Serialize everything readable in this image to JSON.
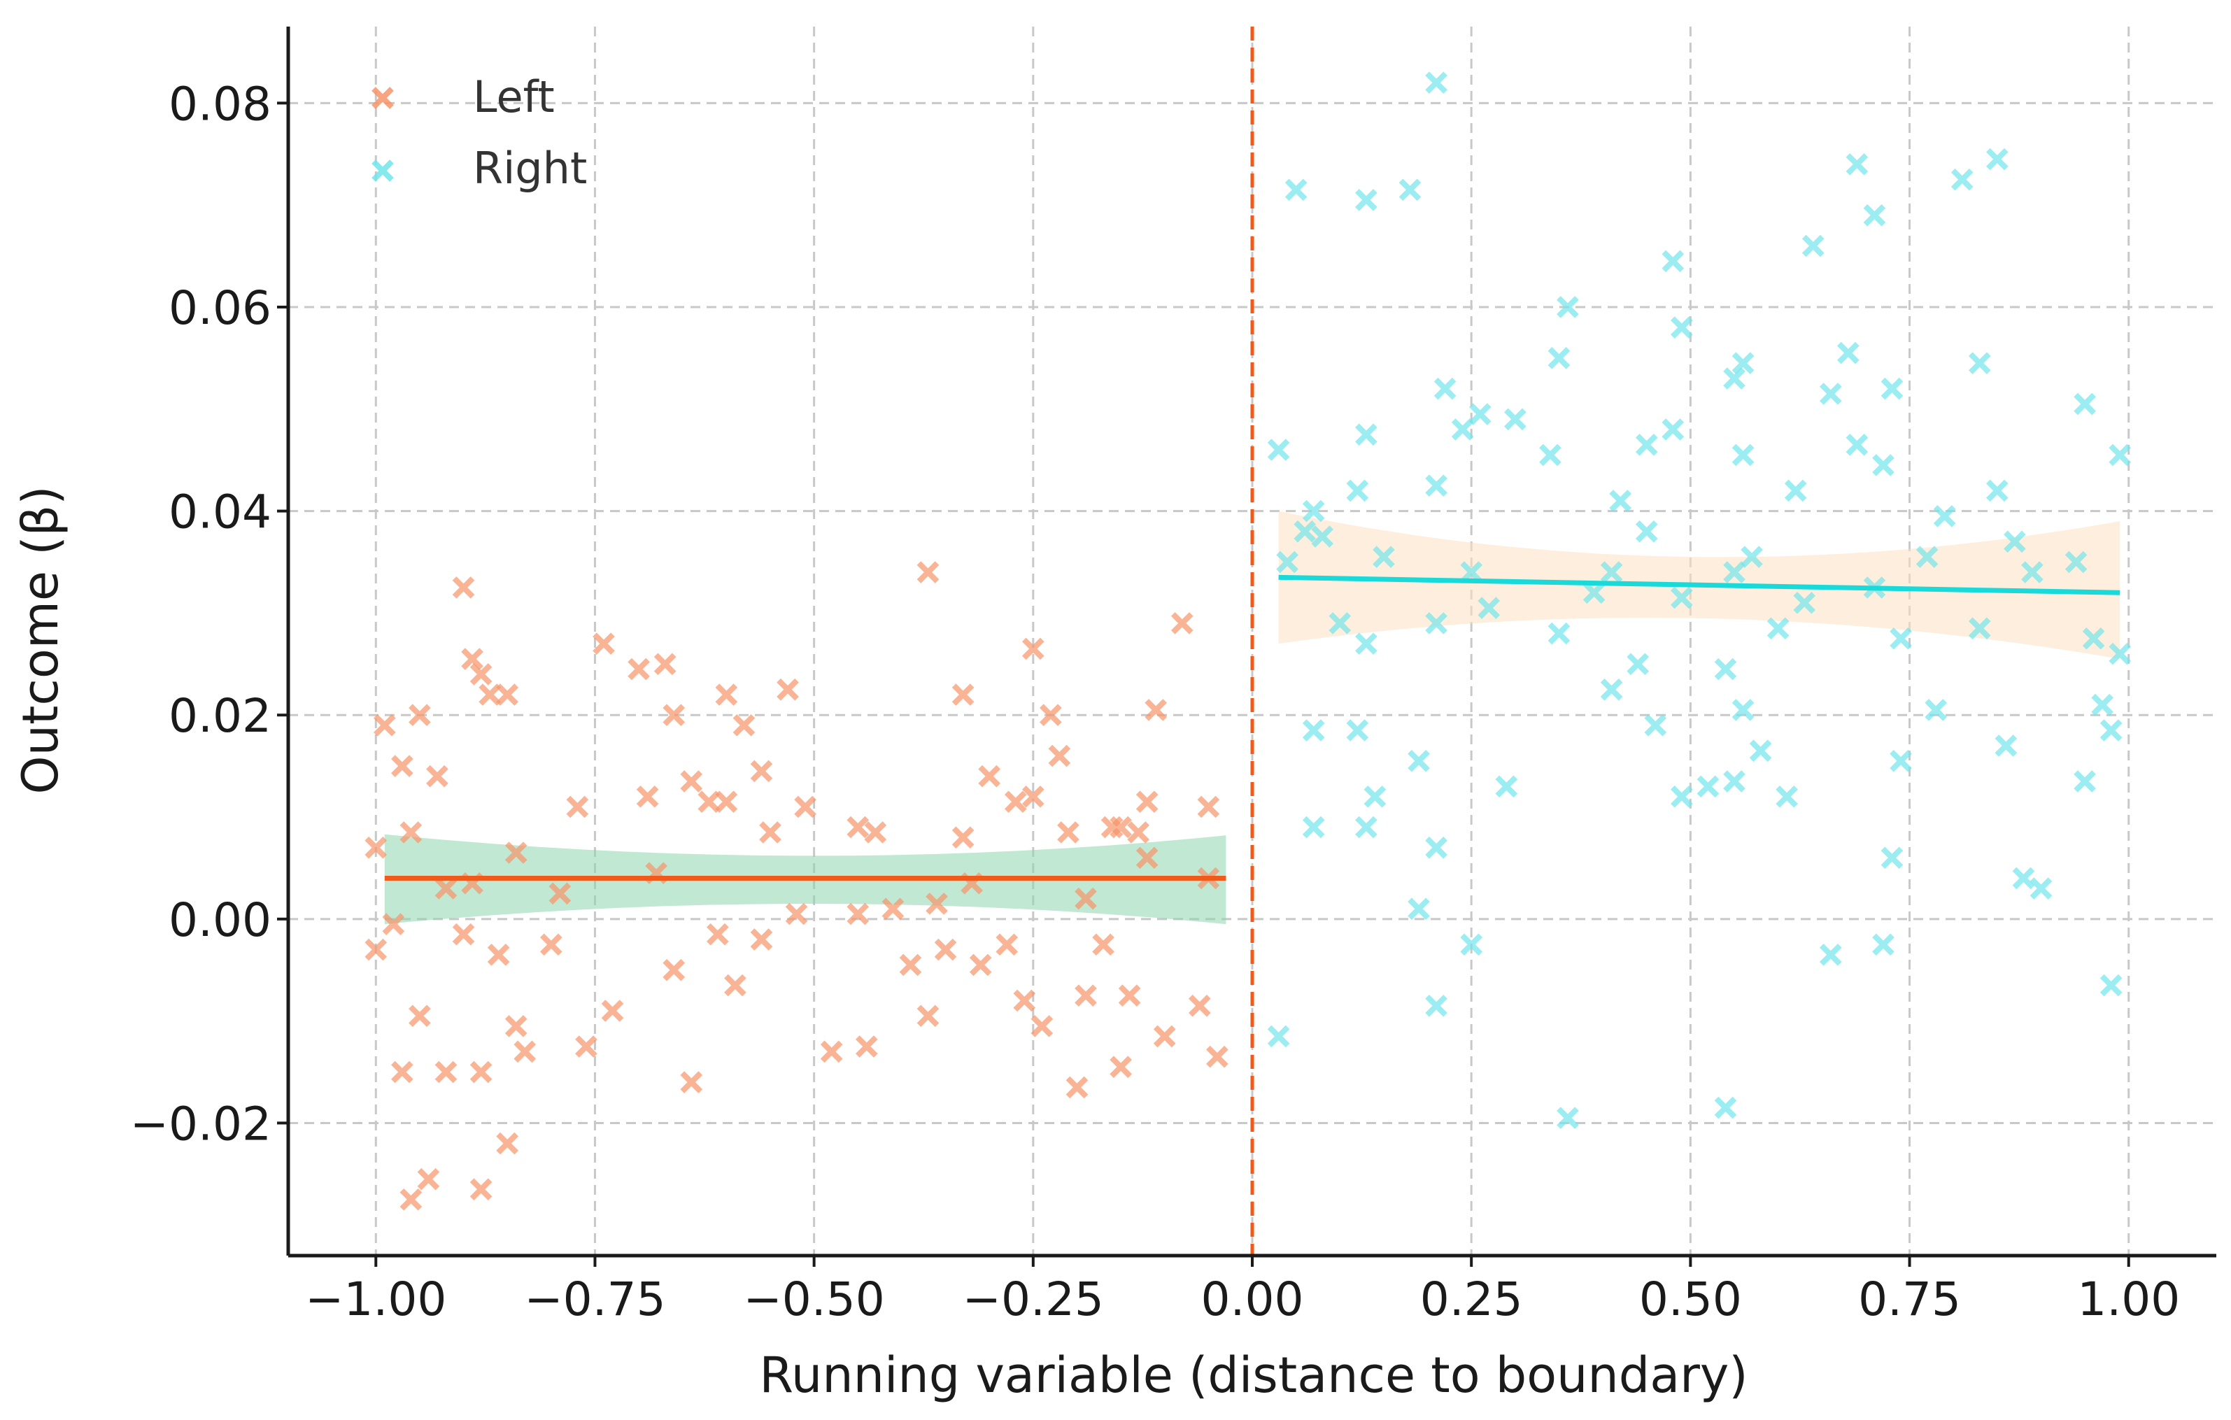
{
  "chart_data": {
    "type": "scatter",
    "title": "",
    "xlabel": "Running variable (distance to boundary)",
    "ylabel": "Outcome (β)",
    "xlim": [
      -1.1,
      1.1
    ],
    "ylim": [
      -0.033,
      0.0875
    ],
    "grid": true,
    "grid_style": "dashed",
    "legend_position": "top-left",
    "x_ticks": [
      -1.0,
      -0.75,
      -0.5,
      -0.25,
      0.0,
      0.25,
      0.5,
      0.75,
      1.0
    ],
    "x_tick_labels": [
      "−1.00",
      "−0.75",
      "−0.50",
      "−0.25",
      "0.00",
      "0.25",
      "0.50",
      "0.75",
      "1.00"
    ],
    "y_ticks": [
      -0.02,
      0.0,
      0.02,
      0.04,
      0.06,
      0.08
    ],
    "y_tick_labels": [
      "−0.02",
      "0.00",
      "0.02",
      "0.04",
      "0.06",
      "0.08"
    ],
    "cutoff": {
      "x": 0.0,
      "color": "#f05a1a",
      "style": "dashed"
    },
    "series": [
      {
        "name": "Left",
        "marker": "x",
        "color": "#f7956a",
        "fit_color": "#f05a1a",
        "band_color": "#8ed6ad",
        "fit": {
          "x": [
            -0.99,
            -0.03
          ],
          "y": [
            0.004,
            0.004
          ]
        },
        "band": {
          "x": [
            -0.99,
            -0.5,
            -0.03
          ],
          "lower": [
            -0.0005,
            0.0015,
            -0.0005
          ],
          "upper": [
            0.0083,
            0.0062,
            0.0082
          ]
        },
        "points": [
          [
            -1.0,
            0.007
          ],
          [
            -0.99,
            0.019
          ],
          [
            -0.97,
            0.015
          ],
          [
            -0.95,
            0.02
          ],
          [
            -0.93,
            0.014
          ],
          [
            -0.9,
            0.0325
          ],
          [
            -0.89,
            0.0255
          ],
          [
            -0.88,
            0.024
          ],
          [
            -0.87,
            0.022
          ],
          [
            -0.85,
            0.022
          ],
          [
            -0.96,
            0.0085
          ],
          [
            -0.92,
            0.003
          ],
          [
            -0.89,
            0.0035
          ],
          [
            -0.84,
            0.0065
          ],
          [
            -0.79,
            0.0025
          ],
          [
            -0.77,
            0.011
          ],
          [
            -0.74,
            0.027
          ],
          [
            -0.7,
            0.0245
          ],
          [
            -0.69,
            0.012
          ],
          [
            -0.67,
            0.025
          ],
          [
            -0.66,
            0.02
          ],
          [
            -0.62,
            0.0115
          ],
          [
            -0.6,
            0.022
          ],
          [
            -0.58,
            0.019
          ],
          [
            -0.56,
            0.0145
          ],
          [
            -0.53,
            0.0225
          ],
          [
            -0.51,
            0.011
          ],
          [
            -0.45,
            0.009
          ],
          [
            -0.43,
            0.0085
          ],
          [
            -0.37,
            0.034
          ],
          [
            -0.33,
            0.022
          ],
          [
            -0.3,
            0.014
          ],
          [
            -0.25,
            0.0265
          ],
          [
            -0.23,
            0.02
          ],
          [
            -0.22,
            0.016
          ],
          [
            -0.08,
            0.029
          ],
          [
            -0.11,
            0.0205
          ],
          [
            -0.12,
            0.0115
          ],
          [
            -0.15,
            0.009
          ],
          [
            -0.05,
            0.011
          ],
          [
            -1.0,
            -0.003
          ],
          [
            -0.98,
            -0.0005
          ],
          [
            -0.97,
            -0.015
          ],
          [
            -0.95,
            -0.0095
          ],
          [
            -0.92,
            -0.015
          ],
          [
            -0.9,
            -0.0015
          ],
          [
            -0.88,
            -0.015
          ],
          [
            -0.86,
            -0.0035
          ],
          [
            -0.84,
            -0.0105
          ],
          [
            -0.83,
            -0.013
          ],
          [
            -0.8,
            -0.0025
          ],
          [
            -0.76,
            -0.0125
          ],
          [
            -0.73,
            -0.009
          ],
          [
            -0.66,
            -0.005
          ],
          [
            -0.64,
            -0.016
          ],
          [
            -0.61,
            -0.0015
          ],
          [
            -0.59,
            -0.0065
          ],
          [
            -0.56,
            -0.002
          ],
          [
            -0.52,
            0.0005
          ],
          [
            -0.48,
            -0.013
          ],
          [
            -0.45,
            0.0005
          ],
          [
            -0.44,
            -0.0125
          ],
          [
            -0.39,
            -0.0045
          ],
          [
            -0.37,
            -0.0095
          ],
          [
            -0.35,
            -0.003
          ],
          [
            -0.31,
            -0.0045
          ],
          [
            -0.28,
            -0.0025
          ],
          [
            -0.26,
            -0.008
          ],
          [
            -0.24,
            -0.0105
          ],
          [
            -0.2,
            -0.0165
          ],
          [
            -0.19,
            -0.0075
          ],
          [
            -0.17,
            -0.0025
          ],
          [
            -0.15,
            -0.0145
          ],
          [
            -0.14,
            -0.0075
          ],
          [
            -0.1,
            -0.0115
          ],
          [
            -0.06,
            -0.0085
          ],
          [
            -0.04,
            -0.0135
          ],
          [
            -0.96,
            -0.0275
          ],
          [
            -0.94,
            -0.0255
          ],
          [
            -0.88,
            -0.0265
          ],
          [
            -0.85,
            -0.022
          ],
          [
            -0.68,
            0.0045
          ],
          [
            -0.64,
            0.0135
          ],
          [
            -0.6,
            0.0115
          ],
          [
            -0.55,
            0.0085
          ],
          [
            -0.41,
            0.001
          ],
          [
            -0.36,
            0.0015
          ],
          [
            -0.33,
            0.008
          ],
          [
            -0.32,
            0.0035
          ],
          [
            -0.27,
            0.0115
          ],
          [
            -0.25,
            0.012
          ],
          [
            -0.21,
            0.0085
          ],
          [
            -0.19,
            0.002
          ],
          [
            -0.16,
            0.009
          ],
          [
            -0.13,
            0.0085
          ],
          [
            -0.12,
            0.006
          ],
          [
            -0.05,
            0.004
          ]
        ]
      },
      {
        "name": "Right",
        "marker": "x",
        "color": "#72e6ec",
        "fit_color": "#1ad9d9",
        "band_color": "#fde0c2",
        "fit": {
          "x": [
            0.03,
            0.99
          ],
          "y": [
            0.0335,
            0.032
          ]
        },
        "band": {
          "x": [
            0.03,
            0.5,
            0.99
          ],
          "lower": [
            0.027,
            0.0295,
            0.0255
          ],
          "upper": [
            0.04,
            0.0355,
            0.039
          ]
        },
        "points": [
          [
            0.05,
            0.0715
          ],
          [
            0.13,
            0.0705
          ],
          [
            0.18,
            0.0715
          ],
          [
            0.21,
            0.082
          ],
          [
            0.03,
            0.046
          ],
          [
            0.07,
            0.04
          ],
          [
            0.12,
            0.042
          ],
          [
            0.13,
            0.0475
          ],
          [
            0.21,
            0.0425
          ],
          [
            0.22,
            0.052
          ],
          [
            0.24,
            0.048
          ],
          [
            0.26,
            0.0495
          ],
          [
            0.3,
            0.049
          ],
          [
            0.34,
            0.0455
          ],
          [
            0.35,
            0.055
          ],
          [
            0.36,
            0.06
          ],
          [
            0.42,
            0.041
          ],
          [
            0.45,
            0.0465
          ],
          [
            0.48,
            0.0645
          ],
          [
            0.49,
            0.058
          ],
          [
            0.48,
            0.048
          ],
          [
            0.55,
            0.053
          ],
          [
            0.56,
            0.0545
          ],
          [
            0.56,
            0.0455
          ],
          [
            0.62,
            0.042
          ],
          [
            0.64,
            0.066
          ],
          [
            0.66,
            0.0515
          ],
          [
            0.68,
            0.0555
          ],
          [
            0.69,
            0.0465
          ],
          [
            0.69,
            0.074
          ],
          [
            0.71,
            0.069
          ],
          [
            0.72,
            0.0445
          ],
          [
            0.73,
            0.052
          ],
          [
            0.79,
            0.0395
          ],
          [
            0.81,
            0.0725
          ],
          [
            0.83,
            0.0545
          ],
          [
            0.85,
            0.0745
          ],
          [
            0.85,
            0.042
          ],
          [
            0.95,
            0.0505
          ],
          [
            0.99,
            0.0455
          ],
          [
            0.04,
            0.035
          ],
          [
            0.06,
            0.038
          ],
          [
            0.08,
            0.0375
          ],
          [
            0.1,
            0.029
          ],
          [
            0.13,
            0.027
          ],
          [
            0.15,
            0.0355
          ],
          [
            0.21,
            0.029
          ],
          [
            0.25,
            0.034
          ],
          [
            0.27,
            0.0305
          ],
          [
            0.35,
            0.028
          ],
          [
            0.39,
            0.032
          ],
          [
            0.41,
            0.034
          ],
          [
            0.45,
            0.038
          ],
          [
            0.49,
            0.0315
          ],
          [
            0.55,
            0.034
          ],
          [
            0.57,
            0.0355
          ],
          [
            0.6,
            0.0285
          ],
          [
            0.63,
            0.031
          ],
          [
            0.71,
            0.0325
          ],
          [
            0.74,
            0.0275
          ],
          [
            0.77,
            0.0355
          ],
          [
            0.83,
            0.0285
          ],
          [
            0.87,
            0.037
          ],
          [
            0.89,
            0.034
          ],
          [
            0.94,
            0.035
          ],
          [
            0.96,
            0.0275
          ],
          [
            0.07,
            0.0185
          ],
          [
            0.12,
            0.0185
          ],
          [
            0.14,
            0.012
          ],
          [
            0.19,
            0.0155
          ],
          [
            0.21,
            0.007
          ],
          [
            0.29,
            0.013
          ],
          [
            0.41,
            0.0225
          ],
          [
            0.44,
            0.025
          ],
          [
            0.46,
            0.019
          ],
          [
            0.49,
            0.012
          ],
          [
            0.52,
            0.013
          ],
          [
            0.54,
            0.0245
          ],
          [
            0.55,
            0.0135
          ],
          [
            0.56,
            0.0205
          ],
          [
            0.58,
            0.0165
          ],
          [
            0.61,
            0.012
          ],
          [
            0.73,
            0.006
          ],
          [
            0.74,
            0.0155
          ],
          [
            0.78,
            0.0205
          ],
          [
            0.86,
            0.017
          ],
          [
            0.88,
            0.004
          ],
          [
            0.9,
            0.003
          ],
          [
            0.95,
            0.0135
          ],
          [
            0.97,
            0.021
          ],
          [
            0.98,
            0.0185
          ],
          [
            0.99,
            0.026
          ],
          [
            0.07,
            0.009
          ],
          [
            0.13,
            0.009
          ],
          [
            0.19,
            0.001
          ],
          [
            0.21,
            -0.0085
          ],
          [
            0.25,
            -0.0025
          ],
          [
            0.03,
            -0.0115
          ],
          [
            0.36,
            -0.0195
          ],
          [
            0.54,
            -0.0185
          ],
          [
            0.66,
            -0.0035
          ],
          [
            0.72,
            -0.0025
          ],
          [
            0.98,
            -0.0065
          ]
        ]
      }
    ]
  }
}
